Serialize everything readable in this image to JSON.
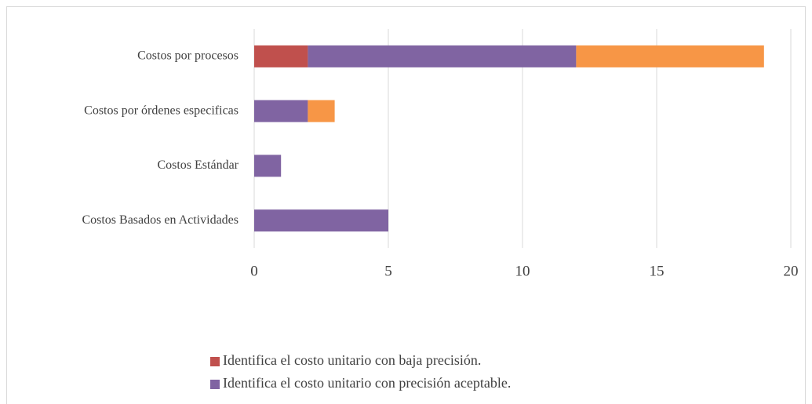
{
  "chart_data": {
    "type": "bar",
    "orientation": "horizontal",
    "stacked": true,
    "categories": [
      "Costos por procesos",
      "Costos por órdenes especificas",
      "Costos Estándar",
      "Costos Basados en Actividades"
    ],
    "series": [
      {
        "name": "Identifica el costo unitario con baja precisión.",
        "color": "#c0504d",
        "values": [
          2,
          0,
          0,
          0
        ]
      },
      {
        "name": "Identifica el costo unitario con precisión aceptable.",
        "color": "#8064a2",
        "values": [
          10,
          2,
          1,
          5
        ]
      },
      {
        "color": "#f79646",
        "values": [
          7,
          1,
          0,
          0
        ]
      }
    ],
    "xlim": [
      0,
      20
    ],
    "xticks": [
      0,
      5,
      10,
      15,
      20
    ],
    "grid": true,
    "legend": "bottom"
  }
}
